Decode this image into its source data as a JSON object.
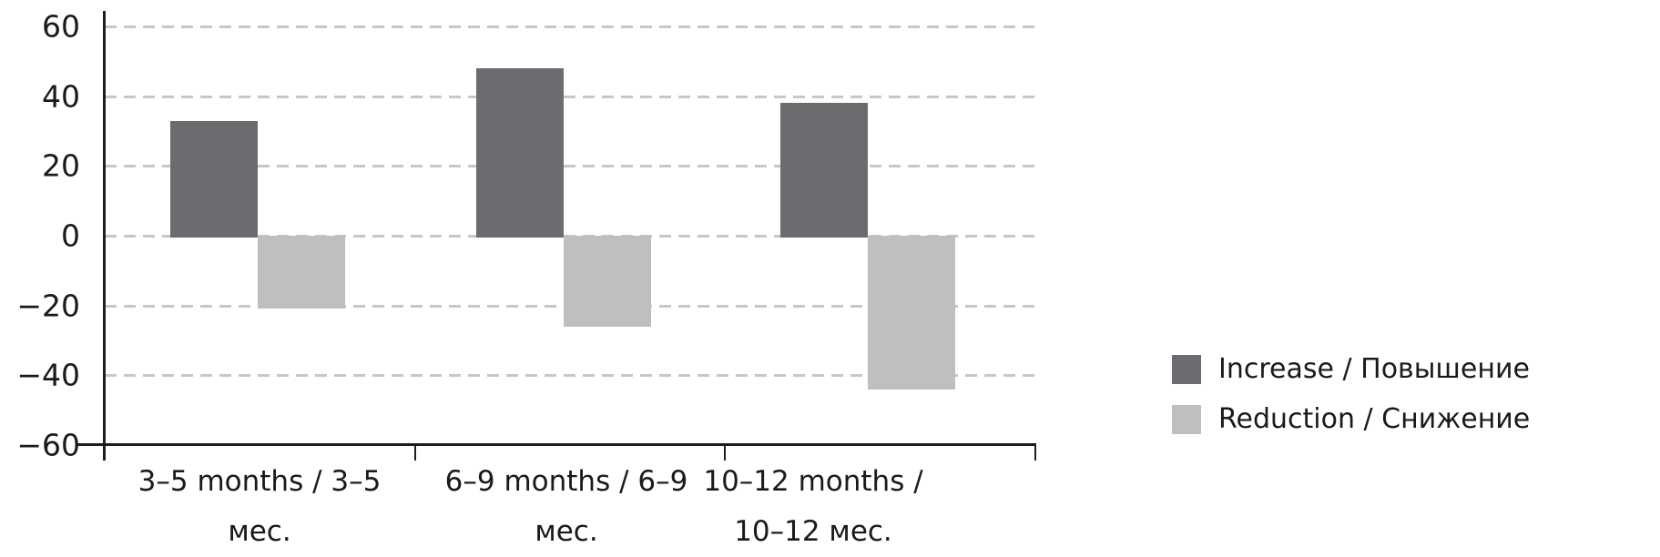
{
  "chart_data": {
    "type": "bar",
    "categories": [
      "3–5 months / 3–5 мес.",
      "6–9 months / 6–9 мес.",
      "10–12 months / 10–12 мес."
    ],
    "category_lines": [
      [
        "3–5 months / 3–5",
        "мес."
      ],
      [
        "6–9 months / 6–9",
        "мес."
      ],
      [
        "10–12 months /",
        "10–12 мес."
      ]
    ],
    "series": [
      {
        "name": "Increase / Повышение",
        "values": [
          33,
          48,
          38
        ],
        "color": "#6b6c6f"
      },
      {
        "name": "Reduction / Снижение",
        "values": [
          -21,
          -26,
          -44
        ],
        "color": "#bebfc1"
      }
    ],
    "yticks": [
      60,
      40,
      20,
      0,
      -20,
      -40,
      -60
    ],
    "ytick_labels": [
      "60",
      "40",
      "20",
      "0",
      "−20",
      "−40",
      "−60"
    ],
    "ylim": [
      -60,
      60
    ],
    "grid": "horizontal-dashed",
    "gridline_color": "#c7c7c8",
    "axis_color": "#1e1e1f",
    "legend_position": "right"
  }
}
